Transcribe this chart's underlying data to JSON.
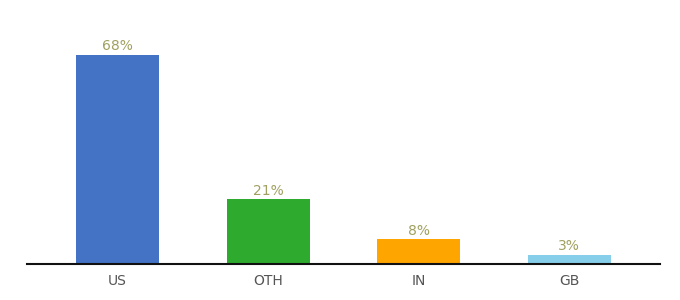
{
  "categories": [
    "US",
    "OTH",
    "IN",
    "GB"
  ],
  "values": [
    68,
    21,
    8,
    3
  ],
  "bar_colors": [
    "#4472C4",
    "#2EAA2E",
    "#FFA500",
    "#87CEEB"
  ],
  "label_color": "#A0A060",
  "labels": [
    "68%",
    "21%",
    "8%",
    "3%"
  ],
  "ylim": [
    0,
    78
  ],
  "background_color": "#ffffff",
  "label_fontsize": 10,
  "tick_fontsize": 10,
  "bar_width": 0.55
}
